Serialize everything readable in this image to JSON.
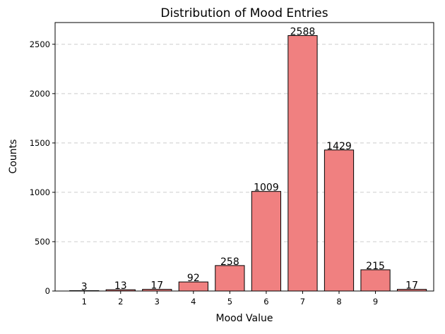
{
  "chart_data": {
    "type": "bar",
    "title": "Distribution of Mood Entries",
    "xlabel": "Mood Value",
    "ylabel": "Counts",
    "bars": [
      {
        "x": 1,
        "value": 3
      },
      {
        "x": 2,
        "value": 13
      },
      {
        "x": 3,
        "value": 17
      },
      {
        "x": 4,
        "value": 92
      },
      {
        "x": 5,
        "value": 258
      },
      {
        "x": 6,
        "value": 1009
      },
      {
        "x": 7,
        "value": 2588
      },
      {
        "x": 8,
        "value": 1429
      },
      {
        "x": 9,
        "value": 215
      },
      {
        "x": 10,
        "value": 17
      }
    ],
    "x_ticks": [
      "1",
      "2",
      "3",
      "4",
      "5",
      "6",
      "7",
      "8",
      "9"
    ],
    "y_ticks": [
      0,
      500,
      1000,
      1500,
      2000,
      2500
    ],
    "ylim": [
      0,
      2720
    ],
    "bar_color": "#f08080",
    "bar_edge_color": "#000000",
    "grid": "y-dashed"
  }
}
